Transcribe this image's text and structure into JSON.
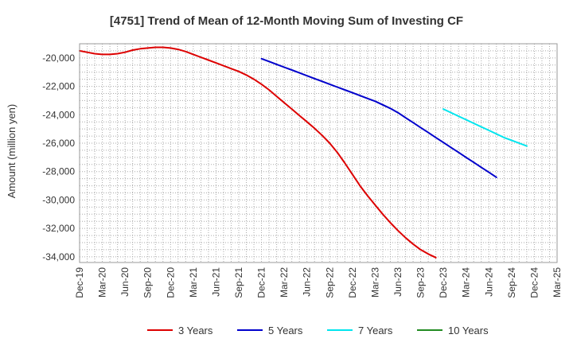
{
  "chart_data": {
    "type": "line",
    "title": "[4751]  Trend of Mean of 12-Month Moving Sum of Investing CF",
    "xlabel": "",
    "ylabel": "Amount (million yen)",
    "ylim": [
      -34400,
      -19000
    ],
    "y_ticks": [
      -20000,
      -22000,
      -24000,
      -26000,
      -28000,
      -30000,
      -32000,
      -34000
    ],
    "y_tick_labels": [
      "-20,000",
      "-22,000",
      "-24,000",
      "-26,000",
      "-28,000",
      "-30,000",
      "-32,000",
      "-34,000"
    ],
    "x_tick_labels": [
      "Dec-19",
      "Mar-20",
      "Jun-20",
      "Sep-20",
      "Dec-20",
      "Mar-21",
      "Jun-21",
      "Sep-21",
      "Dec-21",
      "Mar-22",
      "Jun-22",
      "Sep-22",
      "Dec-22",
      "Mar-23",
      "Jun-23",
      "Sep-23",
      "Dec-23",
      "Mar-24",
      "Jun-24",
      "Sep-24",
      "Dec-24",
      "Mar-25"
    ],
    "grid": true,
    "legend_position": "bottom",
    "series": [
      {
        "name": "3 Years",
        "color": "#dd0000",
        "start_index": 0,
        "values": [
          -19500,
          -19600,
          -19700,
          -19750,
          -19750,
          -19700,
          -19600,
          -19450,
          -19350,
          -19300,
          -19250,
          -19250,
          -19300,
          -19400,
          -19550,
          -19750,
          -19950,
          -20150,
          -20350,
          -20550,
          -20750,
          -20950,
          -21200,
          -21500,
          -21850,
          -22250,
          -22700,
          -23150,
          -23600,
          -24050,
          -24500,
          -24950,
          -25450,
          -26000,
          -26650,
          -27400,
          -28200,
          -29000,
          -29700,
          -30350,
          -31000,
          -31600,
          -32150,
          -32650,
          -33100,
          -33500,
          -33800,
          -34050
        ]
      },
      {
        "name": "5 Years",
        "color": "#0000cc",
        "start_index": 24,
        "values": [
          -20050,
          -20250,
          -20450,
          -20650,
          -20850,
          -21050,
          -21250,
          -21450,
          -21650,
          -21850,
          -22050,
          -22250,
          -22450,
          -22650,
          -22850,
          -23050,
          -23300,
          -23550,
          -23850,
          -24200,
          -24550,
          -24900,
          -25250,
          -25600,
          -25950,
          -26300,
          -26650,
          -27000,
          -27350,
          -27700,
          -28050,
          -28400
        ]
      },
      {
        "name": "7 Years",
        "color": "#00e5ee",
        "start_index": 48,
        "values": [
          -23600,
          -23850,
          -24100,
          -24350,
          -24600,
          -24850,
          -25100,
          -25350,
          -25600,
          -25800,
          -26000,
          -26200
        ]
      },
      {
        "name": "10 Years",
        "color": "#228b22",
        "start_index": 0,
        "values": []
      }
    ]
  }
}
